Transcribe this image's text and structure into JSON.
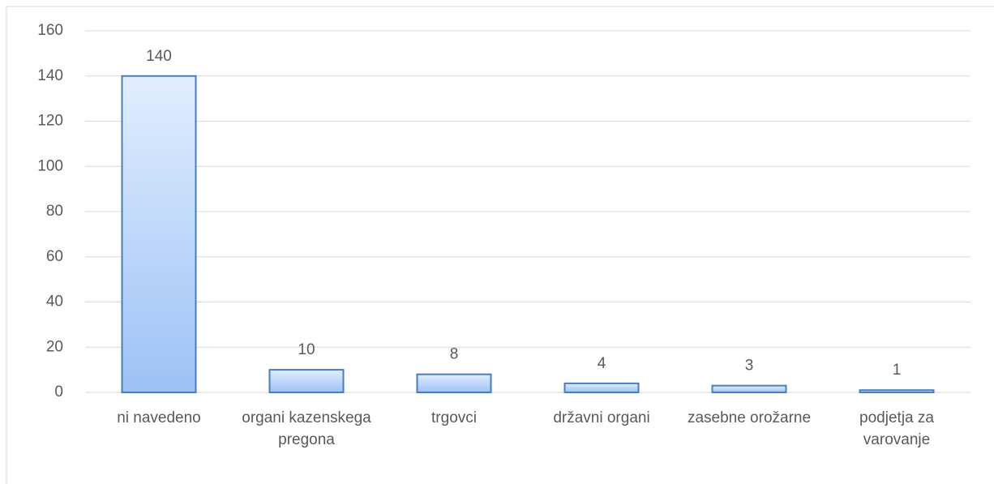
{
  "chart_data": {
    "type": "bar",
    "categories": [
      "ni navedeno",
      "organi kazenskega pregona",
      "trgovci",
      "državni organi",
      "zasebne orožarne",
      "podjetja za varovanje"
    ],
    "values": [
      140,
      10,
      8,
      4,
      3,
      1
    ],
    "color": "#4a7ebb",
    "ylim": [
      0,
      160
    ],
    "yticks": [
      0,
      20,
      40,
      60,
      80,
      100,
      120,
      140,
      160
    ],
    "grid": true
  }
}
